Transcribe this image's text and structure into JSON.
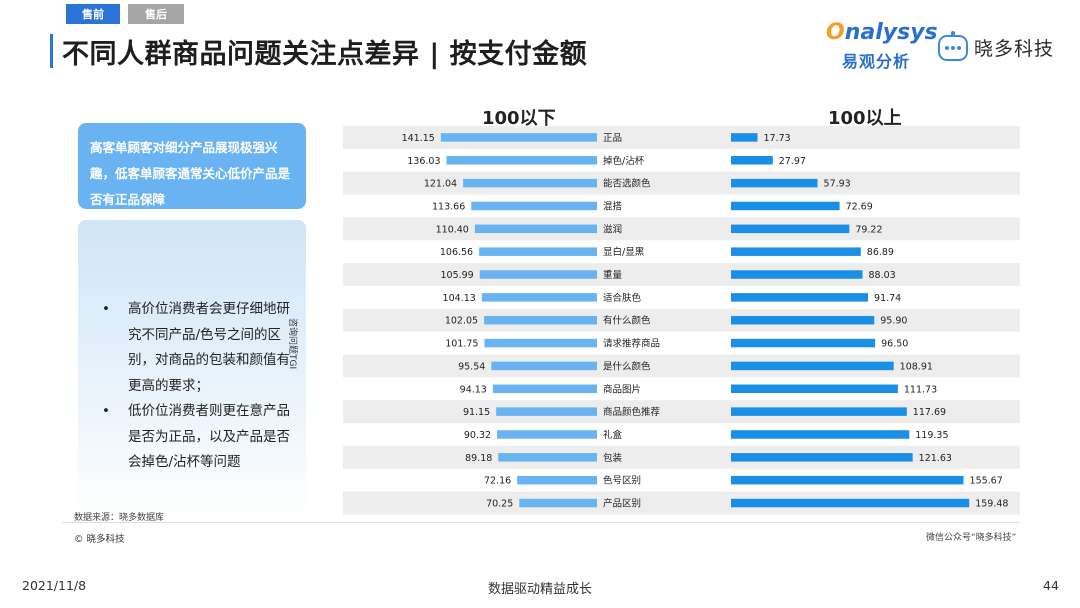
{
  "tabs": [
    {
      "label": "售前",
      "active": true
    },
    {
      "label": "售后",
      "active": false
    }
  ],
  "title": "不同人群商品问题关注点差异 | 按支付金额",
  "logos": {
    "analysys_en_lead": "O",
    "analysys_en_rest": "nalysys",
    "analysys_cn": "易观分析",
    "xiaoduo": "晓多科技"
  },
  "insight_box": {
    "text": "高客单顾客对细分产品展现极强兴趣，低客单顾客通常关心低价产品是否有正品保障"
  },
  "bullets": [
    "高价位消费者会更仔细地研究不同产品/色号之间的区别，对商品的包装和颜值有更高的要求；",
    "低价位消费者则更在意产品是否为正品，以及产品是否会掉色/沾杯等问题"
  ],
  "bullet_symbol": "•",
  "source": "数据来源：晓多数据库",
  "copyright": "© 晓多科技",
  "wechat": "微信公众号“晓多科技”",
  "footer": {
    "date": "2021/11/8",
    "slogan": "数据驱动精益成长",
    "page": "44"
  },
  "colors": {
    "accent": "#2b74d6",
    "bar_left": "#6ab3f2",
    "bar_right": "#1b8ee6",
    "row_band": "#ededed"
  },
  "chart_data": {
    "type": "bar",
    "orientation": "horizontal",
    "ylabel": "咨询问题TGI",
    "categories": [
      "正品",
      "掉色/沾杯",
      "能否选颜色",
      "混搭",
      "滋润",
      "显白/显黑",
      "重量",
      "适合肤色",
      "有什么颜色",
      "请求推荐商品",
      "是什么颜色",
      "商品图片",
      "商品颜色推荐",
      "礼盒",
      "包装",
      "色号区别",
      "产品区别"
    ],
    "series": [
      {
        "name": "100以下",
        "values": [
          141.15,
          136.03,
          121.04,
          113.66,
          110.4,
          106.56,
          105.99,
          104.13,
          102.05,
          101.75,
          95.54,
          94.13,
          91.15,
          90.32,
          89.18,
          72.16,
          70.25
        ]
      },
      {
        "name": "100以上",
        "values": [
          17.73,
          27.97,
          57.93,
          72.69,
          79.22,
          86.89,
          88.03,
          91.74,
          95.9,
          96.5,
          108.91,
          111.73,
          117.69,
          119.35,
          121.63,
          155.67,
          159.48
        ]
      }
    ],
    "value_labels": {
      "left": [
        "141.15",
        "136.03",
        "121.04",
        "113.66",
        "110.40",
        "106.56",
        "105.99",
        "104.13",
        "102.05",
        "101.75",
        "95.54",
        "94.13",
        "91.15",
        "90.32",
        "89.18",
        "72.16",
        "70.25"
      ],
      "right": [
        "17.73",
        "27.97",
        "57.93",
        "72.69",
        "79.22",
        "86.89",
        "88.03",
        "91.74",
        "95.90",
        "96.50",
        "108.91",
        "111.73",
        "117.69",
        "119.35",
        "121.63",
        "155.67",
        "159.48"
      ]
    }
  }
}
